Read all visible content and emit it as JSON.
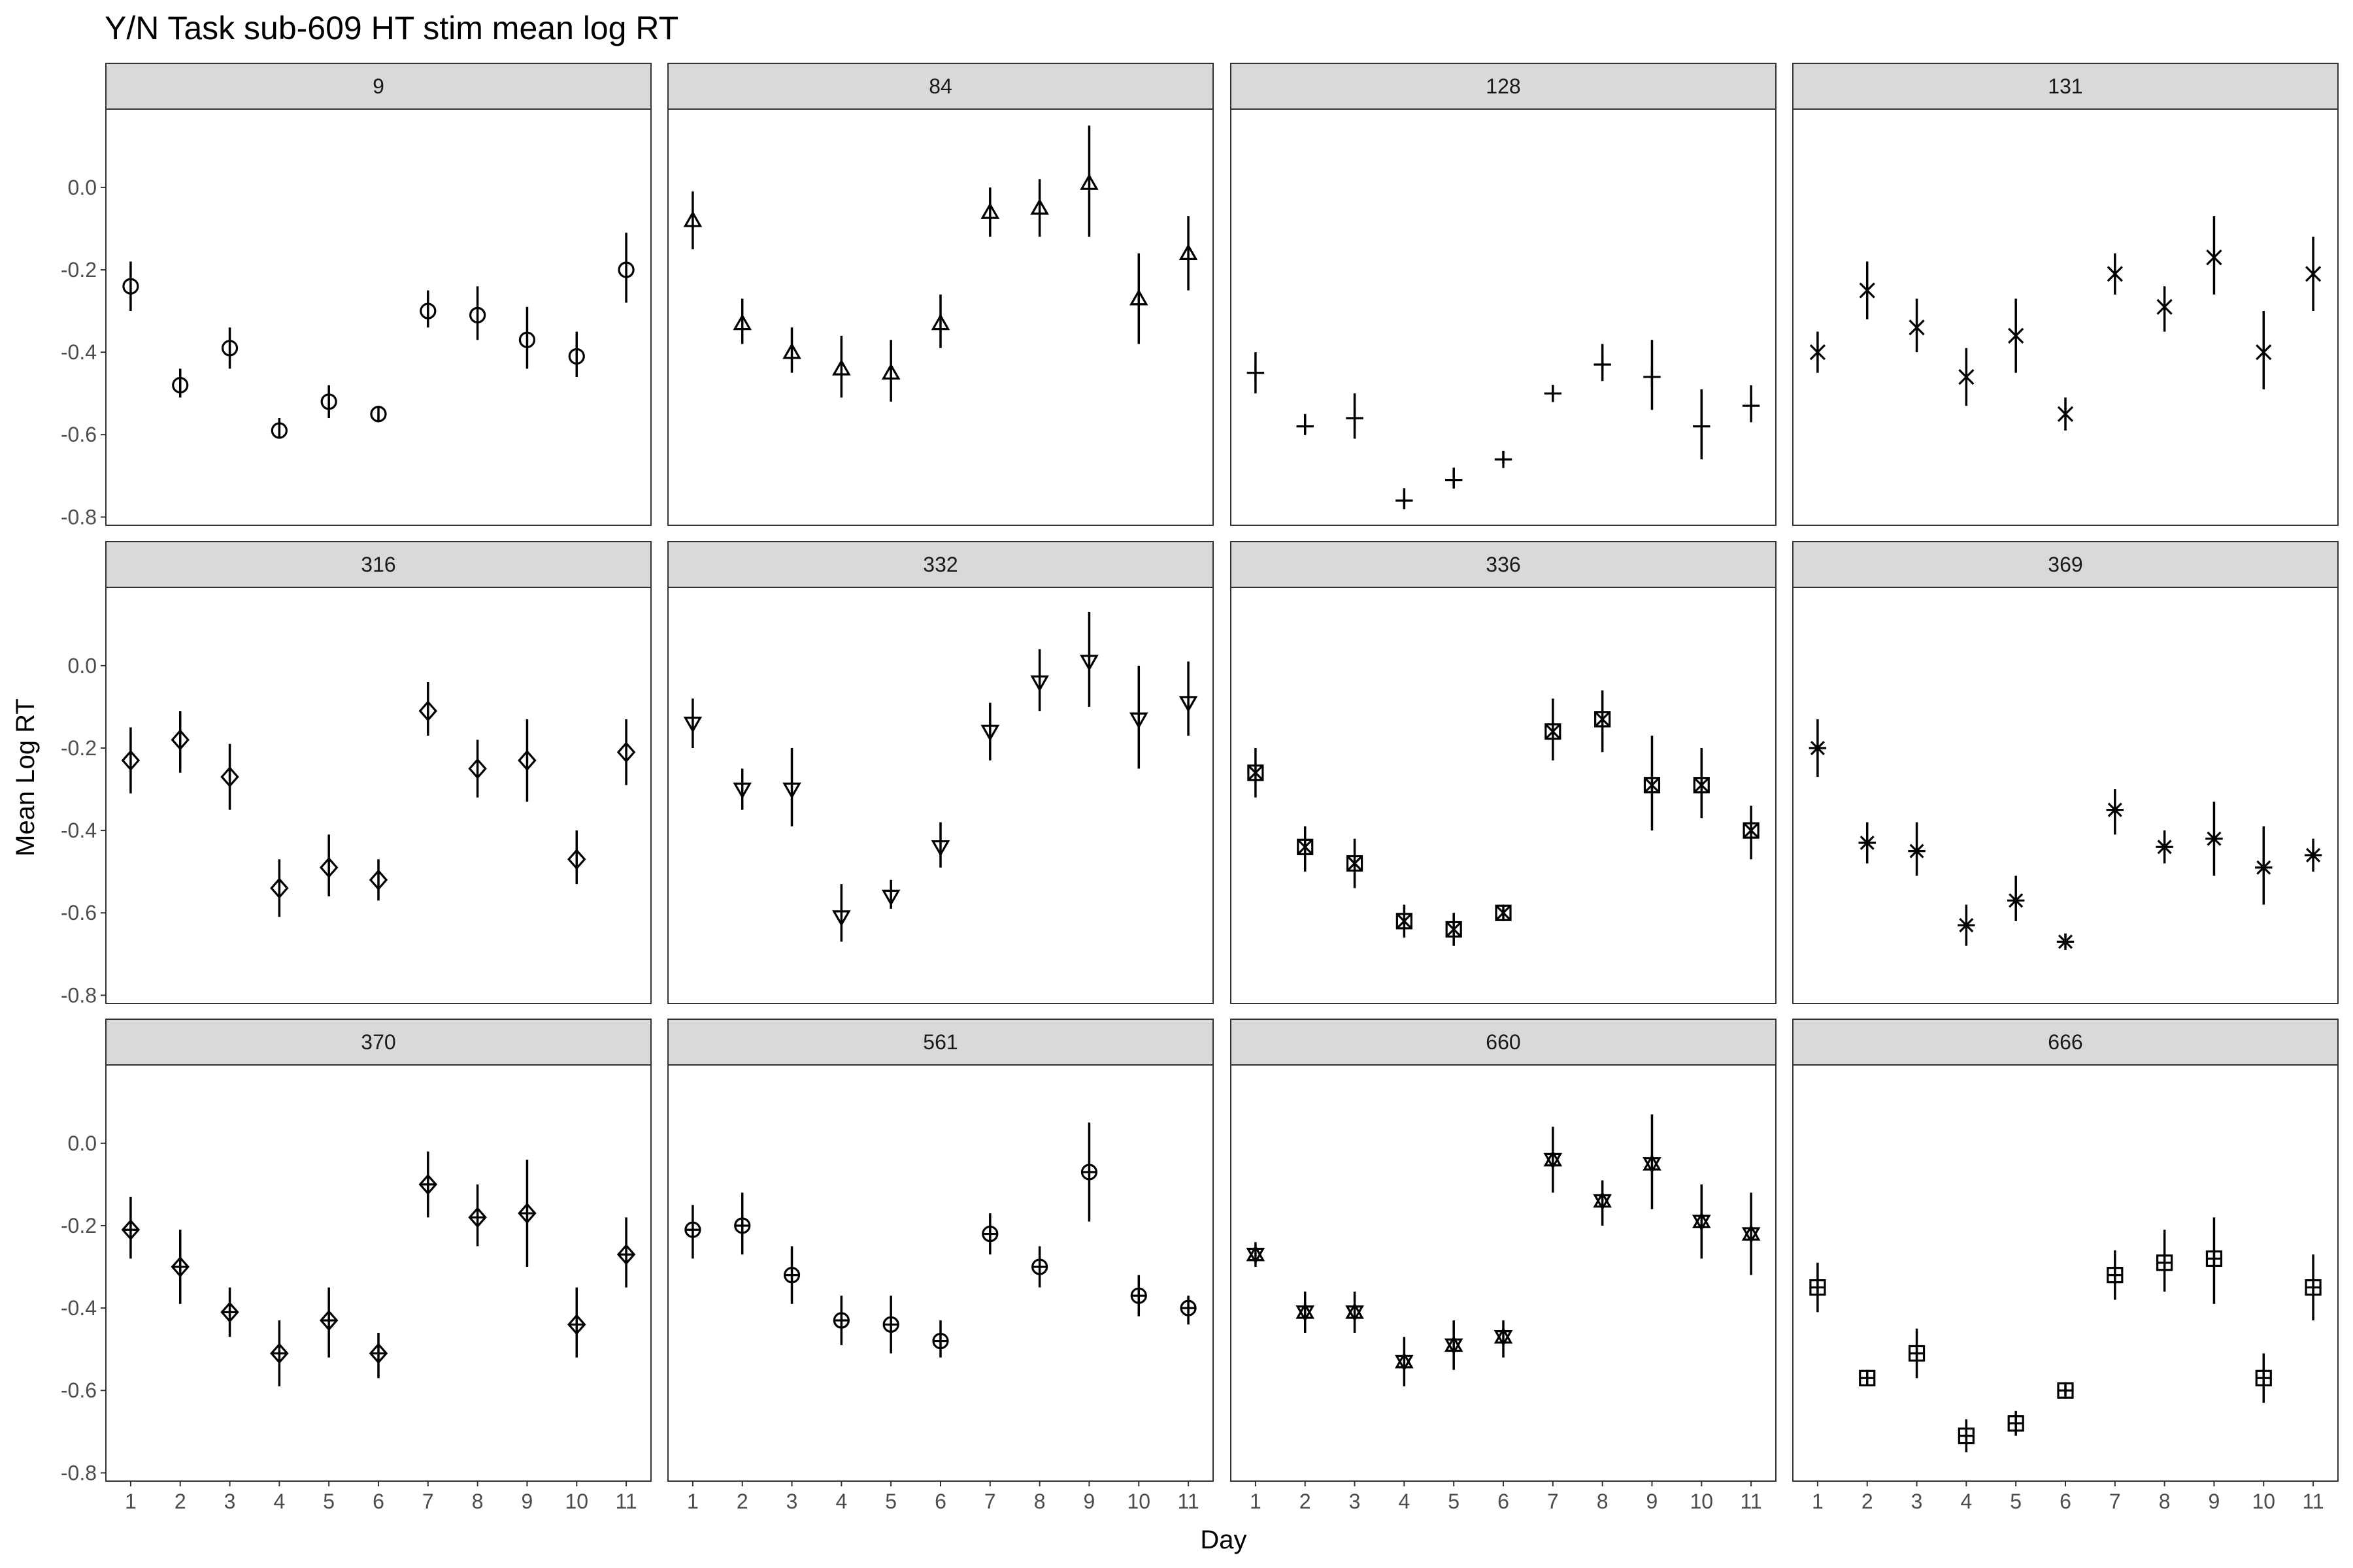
{
  "chart_data": {
    "type": "scatter",
    "title": "Y/N Task sub-609 HT stim mean log RT",
    "xlabel": "Day",
    "ylabel": "Mean Log RT",
    "x": [
      1,
      2,
      3,
      4,
      5,
      6,
      7,
      8,
      9,
      10,
      11
    ],
    "x_tick_labels": [
      "1",
      "2",
      "3",
      "4",
      "5",
      "6",
      "7",
      "8",
      "9",
      "10",
      "11"
    ],
    "y_ticks": [
      0.0,
      -0.2,
      -0.4,
      -0.6,
      -0.8
    ],
    "y_tick_labels": [
      "0.0",
      "-0.2",
      "-0.4",
      "-0.6",
      "-0.8"
    ],
    "ylim": [
      -0.82,
      0.19
    ],
    "xlim": [
      0.5,
      11.5
    ],
    "grid": false,
    "legend": "none",
    "error_bars": true,
    "panels": [
      {
        "label": "9",
        "shape": "circle",
        "y": [
          -0.24,
          -0.48,
          -0.39,
          -0.59,
          -0.52,
          -0.55,
          -0.3,
          -0.31,
          -0.37,
          -0.41,
          -0.2
        ],
        "lo": [
          -0.3,
          -0.51,
          -0.44,
          -0.61,
          -0.56,
          -0.57,
          -0.34,
          -0.37,
          -0.44,
          -0.46,
          -0.28
        ],
        "hi": [
          -0.18,
          -0.44,
          -0.34,
          -0.56,
          -0.48,
          -0.53,
          -0.25,
          -0.24,
          -0.29,
          -0.35,
          -0.11
        ]
      },
      {
        "label": "84",
        "shape": "triangle-up",
        "y": [
          -0.08,
          -0.33,
          -0.4,
          -0.44,
          -0.45,
          -0.33,
          -0.06,
          -0.05,
          0.01,
          -0.27,
          -0.16
        ],
        "lo": [
          -0.15,
          -0.38,
          -0.45,
          -0.51,
          -0.52,
          -0.39,
          -0.12,
          -0.12,
          -0.12,
          -0.38,
          -0.25
        ],
        "hi": [
          -0.01,
          -0.27,
          -0.34,
          -0.36,
          -0.37,
          -0.26,
          0.0,
          0.02,
          0.15,
          -0.16,
          -0.07
        ]
      },
      {
        "label": "128",
        "shape": "plus",
        "y": [
          -0.45,
          -0.58,
          -0.56,
          -0.76,
          -0.71,
          -0.66,
          -0.5,
          -0.43,
          -0.46,
          -0.58,
          -0.53
        ],
        "lo": [
          -0.5,
          -0.6,
          -0.61,
          -0.78,
          -0.73,
          -0.67,
          -0.52,
          -0.47,
          -0.54,
          -0.66,
          -0.57
        ],
        "hi": [
          -0.4,
          -0.55,
          -0.5,
          -0.73,
          -0.68,
          -0.64,
          -0.48,
          -0.38,
          -0.37,
          -0.49,
          -0.48
        ]
      },
      {
        "label": "131",
        "shape": "cross",
        "y": [
          -0.4,
          -0.25,
          -0.34,
          -0.46,
          -0.36,
          -0.55,
          -0.21,
          -0.29,
          -0.17,
          -0.4,
          -0.21
        ],
        "lo": [
          -0.45,
          -0.32,
          -0.4,
          -0.53,
          -0.45,
          -0.59,
          -0.26,
          -0.35,
          -0.26,
          -0.49,
          -0.3
        ],
        "hi": [
          -0.35,
          -0.18,
          -0.27,
          -0.39,
          -0.27,
          -0.51,
          -0.16,
          -0.24,
          -0.07,
          -0.3,
          -0.12
        ]
      },
      {
        "label": "316",
        "shape": "diamond",
        "y": [
          -0.23,
          -0.18,
          -0.27,
          -0.54,
          -0.49,
          -0.52,
          -0.11,
          -0.25,
          -0.23,
          -0.47,
          -0.21
        ],
        "lo": [
          -0.31,
          -0.26,
          -0.35,
          -0.61,
          -0.56,
          -0.57,
          -0.17,
          -0.32,
          -0.33,
          -0.53,
          -0.29
        ],
        "hi": [
          -0.15,
          -0.11,
          -0.19,
          -0.47,
          -0.41,
          -0.47,
          -0.04,
          -0.18,
          -0.13,
          -0.4,
          -0.13
        ]
      },
      {
        "label": "332",
        "shape": "triangle-down",
        "y": [
          -0.14,
          -0.3,
          -0.3,
          -0.61,
          -0.56,
          -0.44,
          -0.16,
          -0.04,
          0.01,
          -0.13,
          -0.09
        ],
        "lo": [
          -0.2,
          -0.35,
          -0.39,
          -0.67,
          -0.59,
          -0.49,
          -0.23,
          -0.11,
          -0.1,
          -0.25,
          -0.17
        ],
        "hi": [
          -0.08,
          -0.25,
          -0.2,
          -0.53,
          -0.52,
          -0.38,
          -0.09,
          0.04,
          0.13,
          0.0,
          0.01
        ]
      },
      {
        "label": "336",
        "shape": "square-cross",
        "y": [
          -0.26,
          -0.44,
          -0.48,
          -0.62,
          -0.64,
          -0.6,
          -0.16,
          -0.13,
          -0.29,
          -0.29,
          -0.4
        ],
        "lo": [
          -0.32,
          -0.5,
          -0.54,
          -0.66,
          -0.68,
          -0.62,
          -0.23,
          -0.21,
          -0.4,
          -0.37,
          -0.47
        ],
        "hi": [
          -0.2,
          -0.39,
          -0.42,
          -0.58,
          -0.6,
          -0.58,
          -0.08,
          -0.06,
          -0.17,
          -0.2,
          -0.34
        ]
      },
      {
        "label": "369",
        "shape": "asterisk",
        "y": [
          -0.2,
          -0.43,
          -0.45,
          -0.63,
          -0.57,
          -0.67,
          -0.35,
          -0.44,
          -0.42,
          -0.49,
          -0.46
        ],
        "lo": [
          -0.27,
          -0.48,
          -0.51,
          -0.68,
          -0.62,
          -0.69,
          -0.41,
          -0.48,
          -0.51,
          -0.58,
          -0.5
        ],
        "hi": [
          -0.13,
          -0.38,
          -0.38,
          -0.58,
          -0.51,
          -0.65,
          -0.3,
          -0.4,
          -0.33,
          -0.39,
          -0.42
        ]
      },
      {
        "label": "370",
        "shape": "diamond-plus",
        "y": [
          -0.21,
          -0.3,
          -0.41,
          -0.51,
          -0.43,
          -0.51,
          -0.1,
          -0.18,
          -0.17,
          -0.44,
          -0.27
        ],
        "lo": [
          -0.28,
          -0.39,
          -0.47,
          -0.59,
          -0.52,
          -0.57,
          -0.18,
          -0.25,
          -0.3,
          -0.52,
          -0.35
        ],
        "hi": [
          -0.13,
          -0.21,
          -0.35,
          -0.43,
          -0.35,
          -0.46,
          -0.02,
          -0.1,
          -0.04,
          -0.35,
          -0.18
        ]
      },
      {
        "label": "561",
        "shape": "circle-plus",
        "y": [
          -0.21,
          -0.2,
          -0.32,
          -0.43,
          -0.44,
          -0.48,
          -0.22,
          -0.3,
          -0.07,
          -0.37,
          -0.4
        ],
        "lo": [
          -0.28,
          -0.27,
          -0.39,
          -0.49,
          -0.51,
          -0.52,
          -0.27,
          -0.35,
          -0.19,
          -0.42,
          -0.44
        ],
        "hi": [
          -0.15,
          -0.12,
          -0.25,
          -0.37,
          -0.37,
          -0.43,
          -0.17,
          -0.25,
          0.05,
          -0.32,
          -0.37
        ]
      },
      {
        "label": "660",
        "shape": "hexagram",
        "y": [
          -0.27,
          -0.41,
          -0.41,
          -0.53,
          -0.49,
          -0.47,
          -0.04,
          -0.14,
          -0.05,
          -0.19,
          -0.22
        ],
        "lo": [
          -0.3,
          -0.46,
          -0.46,
          -0.59,
          -0.55,
          -0.52,
          -0.12,
          -0.2,
          -0.16,
          -0.28,
          -0.32
        ],
        "hi": [
          -0.24,
          -0.36,
          -0.36,
          -0.47,
          -0.43,
          -0.43,
          0.04,
          -0.09,
          0.07,
          -0.1,
          -0.12
        ]
      },
      {
        "label": "666",
        "shape": "square-plus",
        "y": [
          -0.35,
          -0.57,
          -0.51,
          -0.71,
          -0.68,
          -0.6,
          -0.32,
          -0.29,
          -0.28,
          -0.57,
          -0.35
        ],
        "lo": [
          -0.41,
          -0.59,
          -0.57,
          -0.75,
          -0.71,
          -0.62,
          -0.38,
          -0.36,
          -0.39,
          -0.63,
          -0.43
        ],
        "hi": [
          -0.29,
          -0.55,
          -0.45,
          -0.67,
          -0.65,
          -0.58,
          -0.26,
          -0.21,
          -0.18,
          -0.51,
          -0.27
        ]
      }
    ]
  }
}
